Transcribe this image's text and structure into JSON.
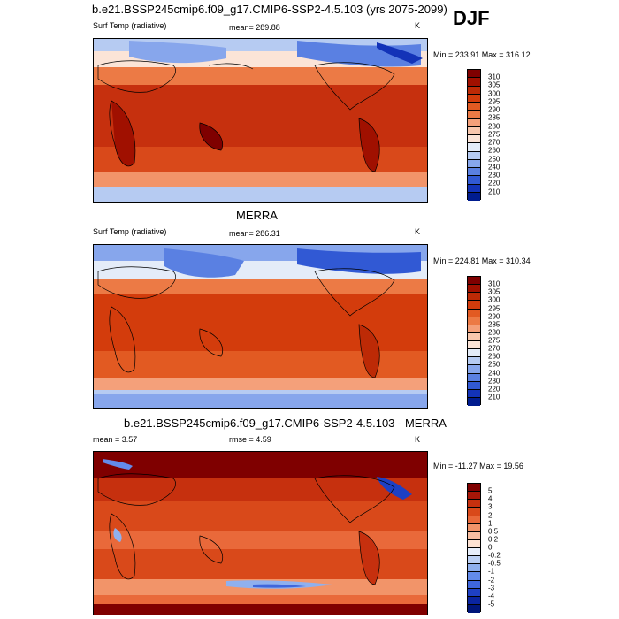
{
  "title": "b.e21.BSSP245cmip6.f09_g17.CMIP6-SSP2-4.5.103 (yrs 2075-2099)",
  "season": "DJF",
  "panels": [
    {
      "heading": "",
      "left_label": "Surf Temp (radiative)",
      "center_label": "mean= 289.88",
      "unit": "K",
      "minmax": "Min = 233.91  Max = 316.12",
      "levels": [
        "310",
        "305",
        "300",
        "295",
        "290",
        "285",
        "280",
        "275",
        "270",
        "260",
        "250",
        "240",
        "230",
        "220",
        "210"
      ]
    },
    {
      "heading": "MERRA",
      "left_label": "Surf Temp (radiative)",
      "center_label": "mean= 286.31",
      "unit": "K",
      "minmax": "Min = 224.81  Max = 310.34",
      "levels": [
        "310",
        "305",
        "300",
        "295",
        "290",
        "285",
        "280",
        "275",
        "270",
        "260",
        "250",
        "240",
        "230",
        "220",
        "210"
      ]
    },
    {
      "heading": "b.e21.BSSP245cmip6.f09_g17.CMIP6-SSP2-4.5.103 - MERRA",
      "left_label": "mean =   3.57",
      "center_label": "rmse =   4.59",
      "unit": "K",
      "minmax": "Min = -11.27  Max =  19.56",
      "levels": [
        "5",
        "4",
        "3",
        "2",
        "1",
        "0.5",
        "0.2",
        "0",
        "-0.2",
        "-0.5",
        "-1",
        "-2",
        "-3",
        "-4",
        "-5"
      ]
    }
  ],
  "colors": {
    "abs_scale": [
      "#7f0000",
      "#a01000",
      "#bd2a06",
      "#d33c0c",
      "#e25a22",
      "#ec7a45",
      "#f4a07a",
      "#f8c7ad",
      "#fbe4d7",
      "#e4ecf8",
      "#b6cbf2",
      "#87a6ec",
      "#5a80e2",
      "#3159d4",
      "#1333b8",
      "#001c8f"
    ],
    "diff_scale": [
      "#7f0000",
      "#a81608",
      "#c6300e",
      "#d9491a",
      "#e9693a",
      "#f29469",
      "#f8bea1",
      "#fde2d3",
      "#e7eefb",
      "#bcd0f4",
      "#8fb0ee",
      "#638bea",
      "#3f66dc",
      "#1e40c4",
      "#0a24a0",
      "#00157a"
    ]
  }
}
